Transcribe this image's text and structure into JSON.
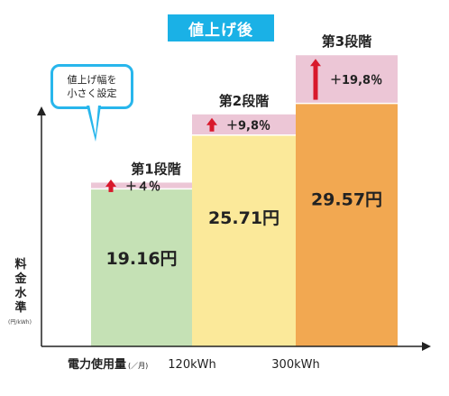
{
  "header": {
    "badge": "値上げ後"
  },
  "callout": {
    "line1": "値上げ幅を",
    "line2": "小さく設定"
  },
  "axis": {
    "y_label_chars": [
      "料",
      "金",
      "水",
      "準"
    ],
    "y_unit": "(円/kWh)",
    "x_label": "電力使用量",
    "x_unit": "(／月)"
  },
  "colors": {
    "increase_band": "#ecc6d6",
    "arrow": "#d8192c",
    "tier1": "#c5e1b5",
    "tier2": "#fbe99a",
    "tier3": "#f2a851"
  },
  "chart_data": {
    "type": "bar",
    "title": "",
    "xlabel": "電力使用量",
    "ylabel": "料金水準",
    "x_ticks": [
      "120kWh",
      "300kWh"
    ],
    "categories": [
      "第1段階",
      "第2段階",
      "第3段階"
    ],
    "values": [
      19.16,
      25.71,
      29.57
    ],
    "value_labels": [
      "19.16円",
      "25.71円",
      "29.57円"
    ],
    "increase_labels": [
      "＋４％",
      "＋9,8％",
      "＋19,8％"
    ],
    "increase_percent": [
      4,
      9.8,
      19.8
    ],
    "ylim": [
      0,
      36
    ]
  }
}
